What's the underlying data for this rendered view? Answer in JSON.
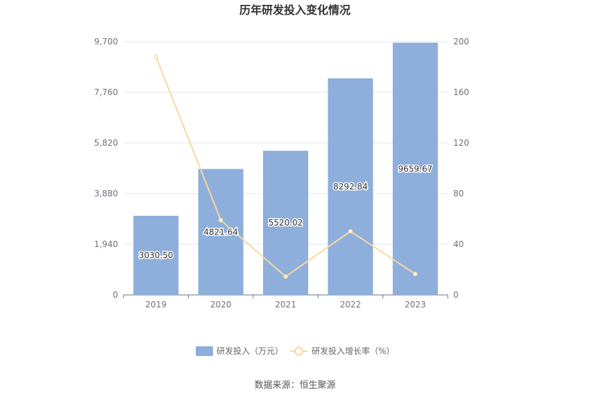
{
  "chart_data": {
    "type": "bar",
    "title": "历年研发投入变化情况",
    "categories": [
      "2019",
      "2020",
      "2021",
      "2022",
      "2023"
    ],
    "series": [
      {
        "name": "研发投入（万元）",
        "type": "bar",
        "axis": "left",
        "values": [
          3030.5,
          4821.64,
          5520.02,
          8292.84,
          9659.67
        ],
        "labels": [
          "3030.50",
          "4821.64",
          "5520.02",
          "8292.84",
          "9659.67"
        ],
        "color": "#8eaedb"
      },
      {
        "name": "研发投入增长率（%）",
        "type": "line",
        "axis": "right",
        "values": [
          188,
          59,
          14.5,
          50.2,
          16.5
        ],
        "color": "#f7d9a0"
      }
    ],
    "y_left": {
      "min": 0,
      "max": 9700,
      "ticks": [
        "0",
        "1,940",
        "3,880",
        "5,820",
        "7,760",
        "9,700"
      ]
    },
    "y_right": {
      "min": 0,
      "max": 200,
      "ticks": [
        "0",
        "40",
        "80",
        "120",
        "160",
        "200"
      ]
    },
    "grid": true,
    "legend_position": "bottom"
  },
  "source": "数据来源：恒生聚源"
}
